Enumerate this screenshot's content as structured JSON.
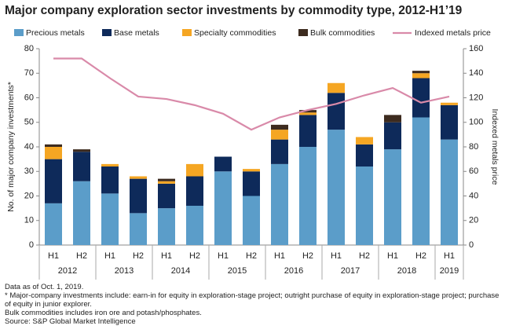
{
  "chart_data": {
    "type": "bar",
    "stacked": true,
    "title": "Major company exploration sector investments by commodity type, 2012-H1’19",
    "ylabel": "No. of major company investments*",
    "y2label": "Indexed metals price",
    "categories": [
      "H1",
      "H2",
      "H1",
      "H2",
      "H1",
      "H2",
      "H1",
      "H2",
      "H1",
      "H2",
      "H1",
      "H2",
      "H1",
      "H2",
      "H1"
    ],
    "group_labels": [
      "2012",
      "2013",
      "2014",
      "2015",
      "2016",
      "2017",
      "2018",
      "2019"
    ],
    "series": [
      {
        "name": "Precious metals",
        "color": "#5b9dc9",
        "values": [
          17,
          26,
          21,
          13,
          15,
          16,
          30,
          20,
          33,
          40,
          47,
          32,
          39,
          52,
          43
        ]
      },
      {
        "name": "Base metals",
        "color": "#0e2a5a",
        "values": [
          18,
          12,
          11,
          14,
          10,
          12,
          6,
          10,
          10,
          13,
          15,
          9,
          11,
          16,
          14
        ]
      },
      {
        "name": "Specialty commodities",
        "color": "#f5a623",
        "values": [
          5,
          0,
          1,
          1,
          1,
          5,
          0,
          1,
          4,
          1,
          4,
          3,
          0,
          2,
          1
        ]
      },
      {
        "name": "Bulk commodities",
        "color": "#3d2b1f",
        "values": [
          1,
          1,
          0,
          0,
          1,
          0,
          0,
          0,
          2,
          1,
          0,
          0,
          3,
          1,
          0
        ]
      },
      {
        "name": "Indexed metals price",
        "color": "#d98aa9",
        "type": "line",
        "axis": "y2",
        "values": [
          152,
          152,
          136,
          121,
          119,
          114,
          107,
          94,
          104,
          110,
          115,
          122,
          128,
          116,
          121
        ]
      }
    ],
    "ylim": [
      0,
      80
    ],
    "yticks": [
      0,
      10,
      20,
      30,
      40,
      50,
      60,
      70,
      80
    ],
    "y2lim": [
      0,
      160
    ],
    "y2ticks": [
      0,
      20,
      40,
      60,
      80,
      100,
      120,
      140,
      160
    ],
    "grid": false,
    "notes": [
      "Data as of Oct. 1, 2019.",
      "* Major-company investments include: earn-in for equity in exploration-stage project; outright purchase of equity in exploration-stage project; purchase of equity in junior explorer.",
      "Bulk commodities includes iron ore and potash/phosphates.",
      "Source: S&P Global Market Intelligence"
    ]
  }
}
